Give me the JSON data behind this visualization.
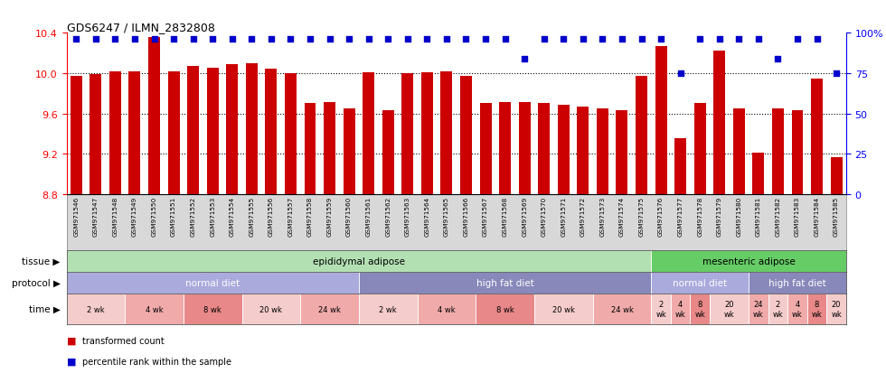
{
  "title": "GDS6247 / ILMN_2832808",
  "samples": [
    "GSM971546",
    "GSM971547",
    "GSM971548",
    "GSM971549",
    "GSM971550",
    "GSM971551",
    "GSM971552",
    "GSM971553",
    "GSM971554",
    "GSM971555",
    "GSM971556",
    "GSM971557",
    "GSM971558",
    "GSM971559",
    "GSM971560",
    "GSM971561",
    "GSM971562",
    "GSM971563",
    "GSM971564",
    "GSM971565",
    "GSM971566",
    "GSM971567",
    "GSM971568",
    "GSM971569",
    "GSM971570",
    "GSM971571",
    "GSM971572",
    "GSM971573",
    "GSM971574",
    "GSM971575",
    "GSM971576",
    "GSM971577",
    "GSM971578",
    "GSM971579",
    "GSM971580",
    "GSM971581",
    "GSM971582",
    "GSM971583",
    "GSM971584",
    "GSM971585"
  ],
  "bar_values": [
    9.97,
    9.99,
    10.02,
    10.02,
    10.36,
    10.02,
    10.07,
    10.05,
    10.09,
    10.1,
    10.04,
    10.0,
    9.7,
    9.71,
    9.65,
    10.01,
    9.63,
    10.0,
    10.01,
    10.02,
    9.97,
    9.7,
    9.71,
    9.71,
    9.7,
    9.69,
    9.67,
    9.65,
    9.63,
    9.97,
    10.27,
    9.35,
    9.7,
    10.22,
    9.65,
    9.21,
    9.65,
    9.63,
    9.95,
    9.17
  ],
  "percentile_values": [
    96,
    96,
    96,
    96,
    96,
    96,
    96,
    96,
    96,
    96,
    96,
    96,
    96,
    96,
    96,
    96,
    96,
    96,
    96,
    96,
    96,
    96,
    96,
    84,
    96,
    96,
    96,
    96,
    96,
    96,
    96,
    75,
    96,
    96,
    96,
    96,
    84,
    96,
    96,
    75
  ],
  "ylim_left": [
    8.8,
    10.4
  ],
  "ylim_right": [
    0,
    100
  ],
  "yticks_left": [
    8.8,
    9.2,
    9.6,
    10.0,
    10.4
  ],
  "bar_color": "#cc0000",
  "dot_color": "#0000cc",
  "tissue_segs": [
    {
      "label": "epididymal adipose",
      "start": 0,
      "end": 30,
      "color": "#b3e0b3"
    },
    {
      "label": "mesenteric adipose",
      "start": 30,
      "end": 40,
      "color": "#66cc66"
    }
  ],
  "protocol_segs": [
    {
      "label": "normal diet",
      "start": 0,
      "end": 15,
      "color": "#aaaadd"
    },
    {
      "label": "high fat diet",
      "start": 15,
      "end": 30,
      "color": "#8888bb"
    },
    {
      "label": "normal diet",
      "start": 30,
      "end": 35,
      "color": "#aaaadd"
    },
    {
      "label": "high fat diet",
      "start": 35,
      "end": 40,
      "color": "#8888bb"
    }
  ],
  "time_segs": [
    {
      "label": "2 wk",
      "start": 0,
      "end": 3,
      "color": "#f5cccc"
    },
    {
      "label": "4 wk",
      "start": 3,
      "end": 6,
      "color": "#f0aaaa"
    },
    {
      "label": "8 wk",
      "start": 6,
      "end": 9,
      "color": "#e88888"
    },
    {
      "label": "20 wk",
      "start": 9,
      "end": 12,
      "color": "#f5cccc"
    },
    {
      "label": "24 wk",
      "start": 12,
      "end": 15,
      "color": "#f0aaaa"
    },
    {
      "label": "2 wk",
      "start": 15,
      "end": 18,
      "color": "#f5cccc"
    },
    {
      "label": "4 wk",
      "start": 18,
      "end": 21,
      "color": "#f0aaaa"
    },
    {
      "label": "8 wk",
      "start": 21,
      "end": 24,
      "color": "#e88888"
    },
    {
      "label": "20 wk",
      "start": 24,
      "end": 27,
      "color": "#f5cccc"
    },
    {
      "label": "24 wk",
      "start": 27,
      "end": 30,
      "color": "#f0aaaa"
    },
    {
      "label": "2\nwk",
      "start": 30,
      "end": 31,
      "color": "#f5cccc"
    },
    {
      "label": "4\nwk",
      "start": 31,
      "end": 32,
      "color": "#f0aaaa"
    },
    {
      "label": "8\nwk",
      "start": 32,
      "end": 33,
      "color": "#e88888"
    },
    {
      "label": "20\nwk",
      "start": 33,
      "end": 35,
      "color": "#f5cccc"
    },
    {
      "label": "24\nwk",
      "start": 35,
      "end": 36,
      "color": "#f0aaaa"
    },
    {
      "label": "2\nwk",
      "start": 36,
      "end": 37,
      "color": "#f5cccc"
    },
    {
      "label": "4\nwk",
      "start": 37,
      "end": 38,
      "color": "#f0aaaa"
    },
    {
      "label": "8\nwk",
      "start": 38,
      "end": 39,
      "color": "#e88888"
    },
    {
      "label": "20\nwk",
      "start": 39,
      "end": 40,
      "color": "#f5cccc"
    }
  ],
  "legend_items": [
    {
      "label": "transformed count",
      "color": "#cc0000"
    },
    {
      "label": "percentile rank within the sample",
      "color": "#0000cc"
    }
  ]
}
